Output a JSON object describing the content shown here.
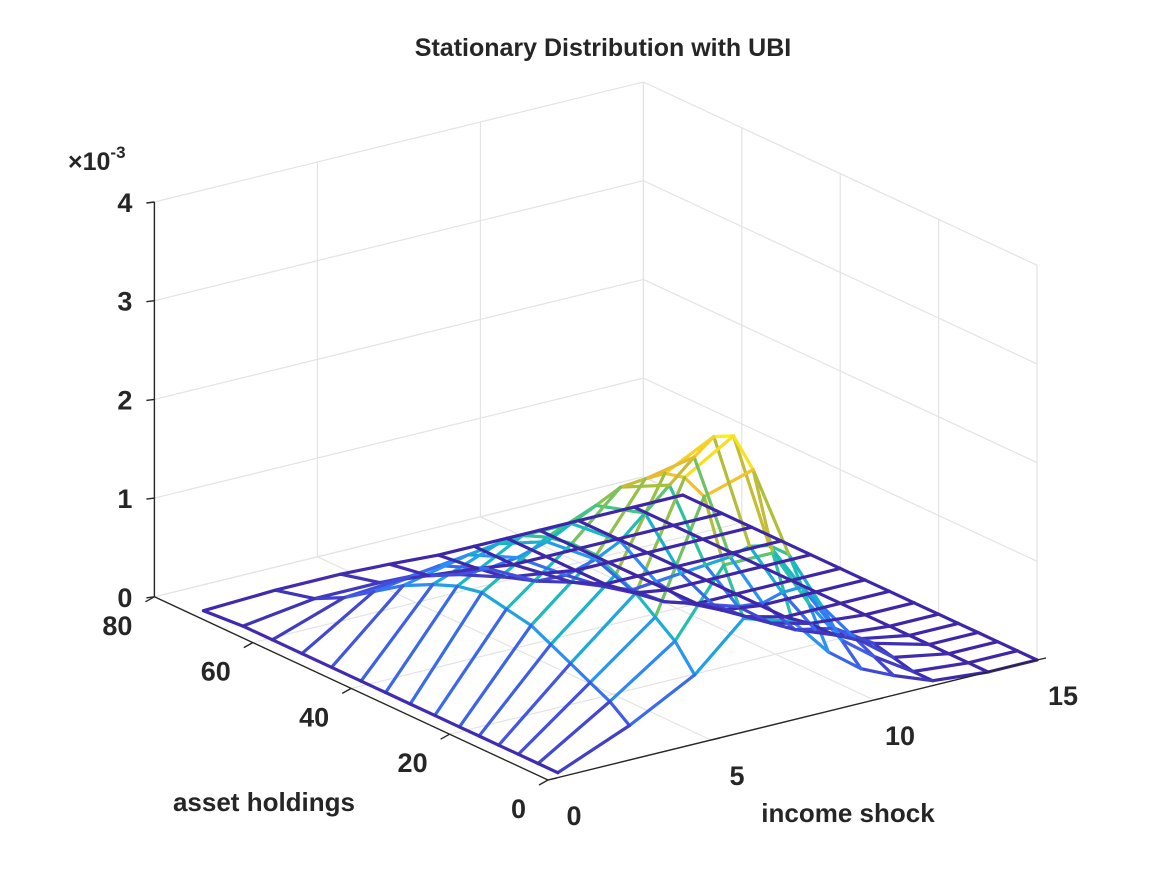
{
  "chart_data": {
    "type": "surface-mesh",
    "title": "Stationary Distribution with UBI",
    "xlabel": "income shock",
    "ylabel": "asset holdings",
    "zlabel": "",
    "z_exponent_label": "×10-3",
    "z_exponent_base": "×10",
    "z_exponent_power": "-3",
    "xlim": [
      0,
      15
    ],
    "ylim": [
      0,
      80
    ],
    "zlim": [
      0,
      0.004
    ],
    "x_ticks": [
      "0",
      "5",
      "10",
      "15"
    ],
    "y_ticks": [
      "0",
      "20",
      "40",
      "60",
      "80"
    ],
    "z_ticks": [
      "0",
      "1",
      "2",
      "3",
      "4"
    ],
    "grid": true,
    "colormap": [
      "#3e26a8",
      "#4255e4",
      "#2c8cf8",
      "#16b8c8",
      "#3ec584",
      "#aabf3a",
      "#f3ba2f",
      "#f9f815"
    ],
    "income_grid": [
      0.3,
      2.5,
      4.5,
      6.0,
      7.5,
      8.6,
      9.6,
      10.6,
      11.8,
      13.5,
      15.0
    ],
    "asset_grid": [
      0,
      4,
      8,
      12,
      16,
      20,
      25,
      30,
      35,
      40,
      46,
      52,
      58,
      64,
      72
    ],
    "density_x1e3": [
      [
        0.05,
        0.35,
        0.7,
        1.15,
        1.0,
        0.6,
        0.35,
        0.2,
        0.05,
        0.0,
        0.0
      ],
      [
        0.05,
        0.5,
        0.95,
        1.6,
        1.6,
        1.0,
        0.55,
        0.3,
        0.05,
        0.0,
        0.0
      ],
      [
        0.05,
        0.6,
        1.1,
        2.2,
        2.35,
        1.4,
        0.8,
        0.4,
        0.1,
        0.0,
        0.0
      ],
      [
        0.05,
        0.7,
        1.25,
        2.3,
        2.6,
        1.4,
        0.9,
        0.4,
        0.15,
        0.0,
        0.0
      ],
      [
        0.05,
        0.8,
        1.35,
        2.25,
        2.5,
        1.3,
        0.75,
        0.3,
        0.1,
        0.0,
        0.0
      ],
      [
        0.05,
        0.9,
        1.45,
        2.1,
        2.2,
        1.1,
        0.55,
        0.2,
        0.05,
        0.0,
        0.0
      ],
      [
        0.05,
        0.95,
        1.45,
        1.9,
        1.8,
        0.9,
        0.4,
        0.15,
        0.05,
        0.0,
        0.0
      ],
      [
        0.05,
        1.0,
        1.4,
        1.6,
        1.4,
        0.7,
        0.3,
        0.1,
        0.0,
        0.0,
        0.0
      ],
      [
        0.05,
        0.95,
        1.3,
        1.3,
        1.0,
        0.5,
        0.2,
        0.05,
        0.0,
        0.0,
        0.0
      ],
      [
        0.05,
        0.85,
        1.1,
        1.0,
        0.7,
        0.3,
        0.1,
        0.0,
        0.0,
        0.0,
        0.0
      ],
      [
        0.05,
        0.7,
        0.85,
        0.7,
        0.4,
        0.2,
        0.05,
        0.0,
        0.0,
        0.0,
        0.0
      ],
      [
        0.05,
        0.5,
        0.6,
        0.45,
        0.2,
        0.1,
        0.0,
        0.0,
        0.0,
        0.0,
        0.0
      ],
      [
        0.05,
        0.3,
        0.35,
        0.25,
        0.1,
        0.05,
        0.0,
        0.0,
        0.0,
        0.0,
        0.0
      ],
      [
        0.05,
        0.15,
        0.15,
        0.1,
        0.05,
        0.0,
        0.0,
        0.0,
        0.0,
        0.0,
        0.0
      ],
      [
        0.02,
        0.05,
        0.05,
        0.03,
        0.0,
        0.0,
        0.0,
        0.0,
        0.0,
        0.0,
        0.0
      ]
    ]
  }
}
